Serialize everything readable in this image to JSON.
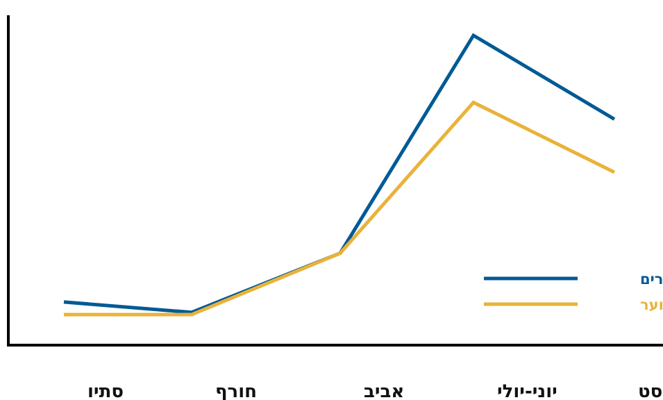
{
  "chart_data": {
    "type": "line",
    "title": "",
    "xlabel": "",
    "ylabel": "",
    "categories": [
      "סתיו",
      "חורף",
      "אביב",
      "יוני-יולי",
      "אוגוסט"
    ],
    "ylim": [
      0,
      100
    ],
    "grid": false,
    "legend_position": "bottom-right",
    "series": [
      {
        "name": "הורים",
        "color": "#005a96",
        "values": [
          4.5,
          0.8,
          22,
          100,
          70
        ]
      },
      {
        "name": "נוער",
        "color": "#e9b23a",
        "values": [
          0,
          0,
          22,
          76,
          51
        ]
      }
    ]
  }
}
